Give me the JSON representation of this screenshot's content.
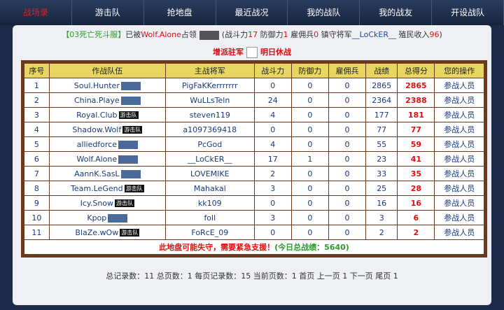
{
  "nav": {
    "items": [
      "战场录",
      "游击队",
      "抢地盘",
      "最近战况",
      "我的战队",
      "我的战友",
      "开设战队"
    ]
  },
  "info": {
    "server": "【03死亡死斗服】",
    "occupied_by_prefix": "已被",
    "occupier": "Wolf.Alone",
    "occupied_suffix": "占领",
    "open": "(",
    "power_label": "战斗力",
    "power": 17,
    "defense_label": "防御力",
    "defense": 1,
    "merc_label": "雇佣兵",
    "merc": 0,
    "general_label": "镇守将军",
    "general": "__LoCkER__",
    "income_label": "殖民收入",
    "income": 96,
    "close": ")"
  },
  "actions": {
    "reinforce": "增派驻军",
    "truce": "明日休战"
  },
  "table": {
    "headers": [
      "序号",
      "作战队伍",
      "主战将军",
      "战斗力",
      "防御力",
      "雇佣兵",
      "战绩",
      "总得分",
      "您的操作"
    ],
    "rows": [
      {
        "no": 1,
        "team": "Soul.Hunter",
        "general": "PigFaKKerrrrrrr",
        "power": 0,
        "defense": 0,
        "merc": 0,
        "record": 2865,
        "score": 2865,
        "action": "参战人员"
      },
      {
        "no": 2,
        "team": "China.Playe",
        "general": "WuLLsTeln",
        "power": 24,
        "defense": 0,
        "merc": 0,
        "record": 2364,
        "score": 2388,
        "action": "参战人员"
      },
      {
        "no": 3,
        "team": "Royal.Club",
        "badge": "游击队",
        "general": "steven119",
        "power": 4,
        "defense": 0,
        "merc": 0,
        "record": 177,
        "score": 181,
        "action": "参战人员"
      },
      {
        "no": 4,
        "team": "Shadow.Wolf",
        "badge": "游击队",
        "general": "a1097369418",
        "power": 0,
        "defense": 0,
        "merc": 0,
        "record": 77,
        "score": 77,
        "action": "参战人员"
      },
      {
        "no": 5,
        "team": "alliedforce",
        "general": "PcGod",
        "power": 4,
        "defense": 0,
        "merc": 0,
        "record": 55,
        "score": 59,
        "action": "参战人员"
      },
      {
        "no": 6,
        "team": "Wolf.Alone",
        "general": "__LoCkER__",
        "power": 17,
        "defense": 1,
        "merc": 0,
        "record": 23,
        "score": 41,
        "action": "参战人员"
      },
      {
        "no": 7,
        "team": "AannK.SasL",
        "general": "LOVEMIKE",
        "power": 2,
        "defense": 0,
        "merc": 0,
        "record": 33,
        "score": 35,
        "action": "参战人员"
      },
      {
        "no": 8,
        "team": "Team.LeGend",
        "badge": "游击队",
        "general": "Mahakal",
        "power": 3,
        "defense": 0,
        "merc": 0,
        "record": 25,
        "score": 28,
        "action": "参战人员"
      },
      {
        "no": 9,
        "team": "Icy.Snow",
        "badge": "游击队",
        "general": "kk109",
        "power": 0,
        "defense": 0,
        "merc": 0,
        "record": 16,
        "score": 16,
        "action": "参战人员"
      },
      {
        "no": 10,
        "team": "Kpop",
        "general": "foll",
        "power": 3,
        "defense": 0,
        "merc": 0,
        "record": 3,
        "score": 6,
        "action": "参战人员"
      },
      {
        "no": 11,
        "team": "BlaZe.wOw",
        "badge": "游击队",
        "general": "FoRcE_09",
        "power": 0,
        "defense": 0,
        "merc": 0,
        "record": 2,
        "score": 2,
        "action": "参战人员"
      }
    ],
    "footer_warning": "此地盘可能失守，需要紧急支援！",
    "footer_total": "(今日总战绩：5640)"
  },
  "pagination": "总记录数：11 总页数：1 每页记录数：15 当前页数：1 首页 上一页 1 下一页 尾页 1"
}
